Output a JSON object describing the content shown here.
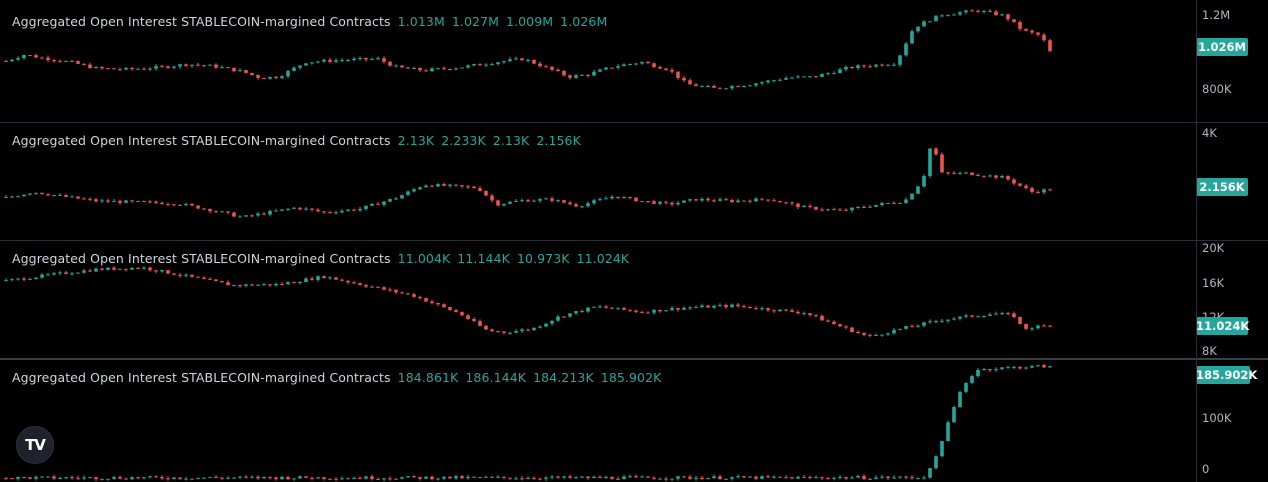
{
  "colors": {
    "up": "#26a69a",
    "down": "#ef5350",
    "background": "#000000",
    "text": "#d1d4dc",
    "axis_text": "#b2b5be"
  },
  "brand": {
    "logo": "tradingview-logo-icon",
    "logo_text": "TV"
  },
  "chart_data": [
    {
      "type": "candlestick",
      "title": "Aggregated Open Interest STABLECOIN-margined Contracts",
      "ohlc_legend": [
        "1.013M",
        "1.027M",
        "1.009M",
        "1.026M"
      ],
      "last_value_label": "1.026M",
      "last_value": 1026000,
      "y_ticks": [
        {
          "label": "1.2M",
          "value": 1200000
        },
        {
          "label": "800K",
          "value": 800000
        }
      ],
      "ylim": [
        690000,
        1270000
      ],
      "bar_count": 175,
      "close_profile": [
        [
          0,
          980000
        ],
        [
          4,
          1010000
        ],
        [
          8,
          995000
        ],
        [
          14,
          975000
        ],
        [
          20,
          945000
        ],
        [
          26,
          940000
        ],
        [
          34,
          950000
        ],
        [
          40,
          965000
        ],
        [
          46,
          955000
        ],
        [
          52,
          930000
        ],
        [
          56,
          900000
        ],
        [
          60,
          905000
        ],
        [
          66,
          975000
        ],
        [
          74,
          985000
        ],
        [
          82,
          990000
        ],
        [
          86,
          950000
        ],
        [
          92,
          935000
        ],
        [
          100,
          950000
        ],
        [
          108,
          975000
        ],
        [
          114,
          990000
        ],
        [
          120,
          940000
        ],
        [
          124,
          905000
        ],
        [
          128,
          915000
        ],
        [
          134,
          955000
        ],
        [
          140,
          975000
        ],
        [
          146,
          940000
        ],
        [
          150,
          870000
        ],
        [
          156,
          850000
        ],
        [
          164,
          870000
        ],
        [
          172,
          900000
        ],
        [
          178,
          905000
        ],
        [
          186,
          950000
        ],
        [
          196,
          970000
        ],
        [
          200,
          1140000
        ],
        [
          206,
          1200000
        ],
        [
          214,
          1220000
        ],
        [
          220,
          1195000
        ],
        [
          224,
          1125000
        ],
        [
          228,
          1100000
        ],
        [
          230,
          1026000
        ]
      ],
      "x_max": 230
    },
    {
      "type": "candlestick",
      "title": "Aggregated Open Interest STABLECOIN-margined Contracts",
      "ohlc_legend": [
        "2.13K",
        "2.233K",
        "2.13K",
        "2.156K"
      ],
      "last_value_label": "2.156K",
      "last_value": 2156,
      "y_ticks": [
        {
          "label": "4K",
          "value": 4000
        }
      ],
      "ylim": [
        600,
        4200
      ],
      "bar_count": 175,
      "close_profile": [
        [
          0,
          1900
        ],
        [
          6,
          2080
        ],
        [
          12,
          1950
        ],
        [
          20,
          1800
        ],
        [
          30,
          1760
        ],
        [
          38,
          1720
        ],
        [
          46,
          1500
        ],
        [
          52,
          1300
        ],
        [
          58,
          1450
        ],
        [
          64,
          1600
        ],
        [
          70,
          1450
        ],
        [
          78,
          1560
        ],
        [
          86,
          1900
        ],
        [
          92,
          2300
        ],
        [
          98,
          2260
        ],
        [
          104,
          2200
        ],
        [
          108,
          1700
        ],
        [
          114,
          1820
        ],
        [
          120,
          1850
        ],
        [
          126,
          1650
        ],
        [
          134,
          1950
        ],
        [
          140,
          1800
        ],
        [
          146,
          1700
        ],
        [
          152,
          1850
        ],
        [
          160,
          1800
        ],
        [
          168,
          1860
        ],
        [
          176,
          1600
        ],
        [
          184,
          1500
        ],
        [
          190,
          1650
        ],
        [
          198,
          1800
        ],
        [
          202,
          2450
        ],
        [
          204,
          3680
        ],
        [
          206,
          2650
        ],
        [
          212,
          2650
        ],
        [
          220,
          2520
        ],
        [
          226,
          2080
        ],
        [
          230,
          2156
        ]
      ],
      "x_max": 230
    },
    {
      "type": "candlestick",
      "title": "Aggregated Open Interest STABLECOIN-margined Contracts",
      "ohlc_legend": [
        "11.004K",
        "11.144K",
        "10.973K",
        "11.024K"
      ],
      "last_value_label": "11.024K",
      "last_value": 11024,
      "y_ticks": [
        {
          "label": "20K",
          "value": 20000
        },
        {
          "label": "16K",
          "value": 16000
        },
        {
          "label": "12K",
          "value": 12000
        },
        {
          "label": "8K",
          "value": 8000
        }
      ],
      "ylim": [
        7400,
        20600
      ],
      "bar_count": 175,
      "close_profile": [
        [
          0,
          16100
        ],
        [
          10,
          16800
        ],
        [
          20,
          17400
        ],
        [
          30,
          17600
        ],
        [
          40,
          16600
        ],
        [
          50,
          15600
        ],
        [
          60,
          15700
        ],
        [
          70,
          16600
        ],
        [
          80,
          15500
        ],
        [
          90,
          14400
        ],
        [
          100,
          12400
        ],
        [
          106,
          10500
        ],
        [
          110,
          10300
        ],
        [
          116,
          10700
        ],
        [
          122,
          12100
        ],
        [
          130,
          13200
        ],
        [
          140,
          12600
        ],
        [
          150,
          13100
        ],
        [
          160,
          13300
        ],
        [
          168,
          12900
        ],
        [
          176,
          12500
        ],
        [
          182,
          11300
        ],
        [
          190,
          9800
        ],
        [
          198,
          10800
        ],
        [
          206,
          11700
        ],
        [
          212,
          12100
        ],
        [
          218,
          12400
        ],
        [
          222,
          12200
        ],
        [
          224,
          10700
        ],
        [
          228,
          11000
        ],
        [
          230,
          11024
        ]
      ],
      "x_max": 230
    },
    {
      "type": "candlestick",
      "title": "Aggregated Open Interest STABLECOIN-margined Contracts",
      "ohlc_legend": [
        "184.861K",
        "186.144K",
        "184.213K",
        "185.902K"
      ],
      "last_value_label": "185.902K",
      "last_value": 185902,
      "y_ticks": [
        {
          "label": "100K",
          "value": 100000
        },
        {
          "label": "0",
          "value": 0
        }
      ],
      "ylim": [
        -6000,
        196000
      ],
      "bar_count": 175,
      "close_profile": [
        [
          0,
          1000
        ],
        [
          60,
          1200
        ],
        [
          120,
          1100
        ],
        [
          180,
          1300
        ],
        [
          202,
          1500
        ],
        [
          204,
          18000
        ],
        [
          206,
          60000
        ],
        [
          208,
          100000
        ],
        [
          210,
          140000
        ],
        [
          212,
          165000
        ],
        [
          214,
          180000
        ],
        [
          220,
          183000
        ],
        [
          226,
          185000
        ],
        [
          230,
          185902
        ]
      ],
      "x_max": 230
    }
  ]
}
